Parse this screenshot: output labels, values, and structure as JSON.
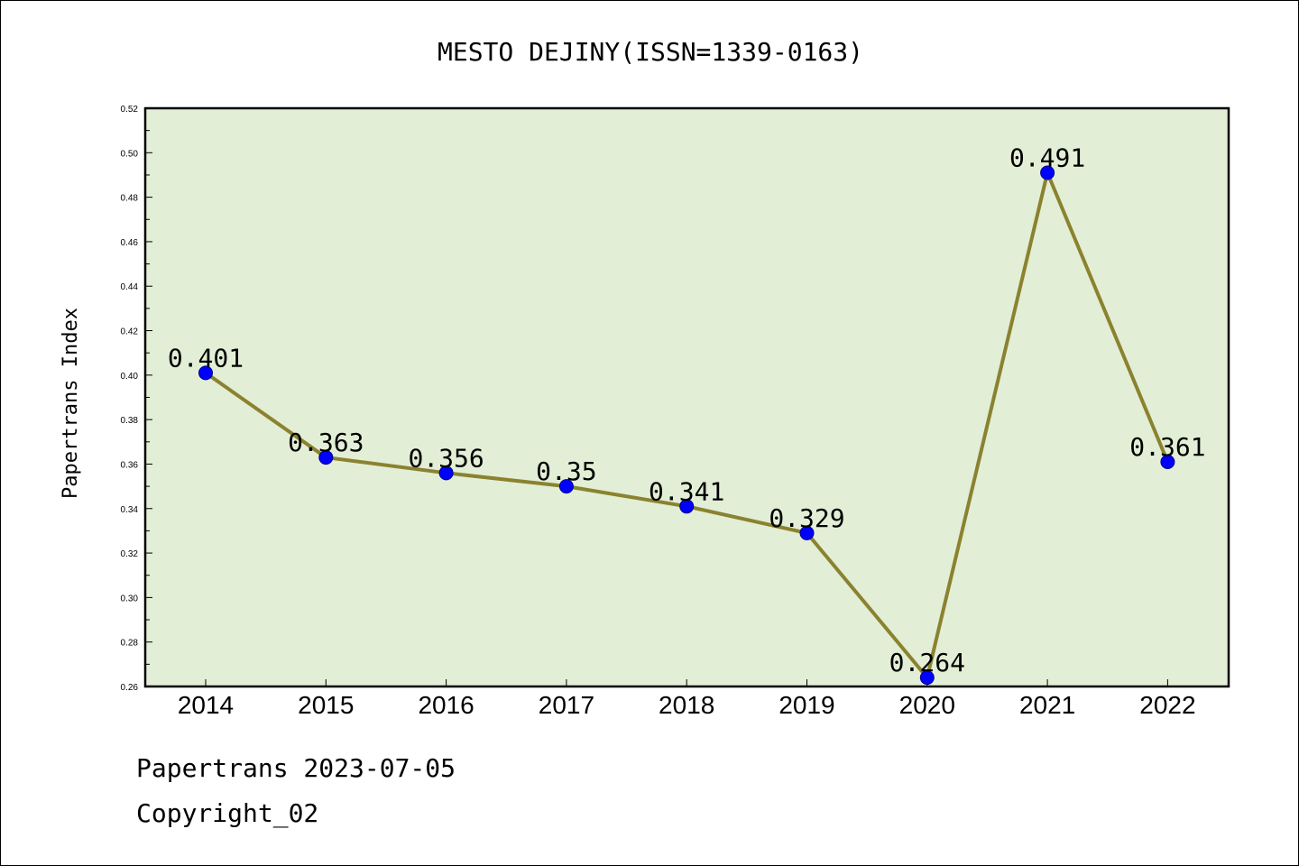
{
  "chart_data": {
    "type": "line",
    "title": "MESTO DEJINY(ISSN=1339-0163)",
    "xlabel": "",
    "ylabel": "Papertrans Index",
    "categories": [
      "2014",
      "2015",
      "2016",
      "2017",
      "2018",
      "2019",
      "2020",
      "2021",
      "2022"
    ],
    "series": [
      {
        "values": [
          0.401,
          0.363,
          0.356,
          0.35,
          0.341,
          0.329,
          0.264,
          0.491,
          0.361
        ],
        "labels": [
          "0.401",
          "0.363",
          "0.356",
          "0.35",
          "0.341",
          "0.329",
          "0.264",
          "0.491",
          "0.361"
        ]
      }
    ],
    "ylim": [
      0.26,
      0.52
    ],
    "yticks": [
      "0.26",
      "0.28",
      "0.30",
      "0.32",
      "0.34",
      "0.36",
      "0.38",
      "0.40",
      "0.42",
      "0.44",
      "0.46",
      "0.48",
      "0.50",
      "0.52"
    ],
    "grid": false,
    "colors": {
      "plot_background": "#e2efd6",
      "line": "#8b8230",
      "marker": "#0000ff"
    }
  },
  "footer": {
    "line1": "Papertrans 2023-07-05",
    "line2": "Copyright_02"
  }
}
